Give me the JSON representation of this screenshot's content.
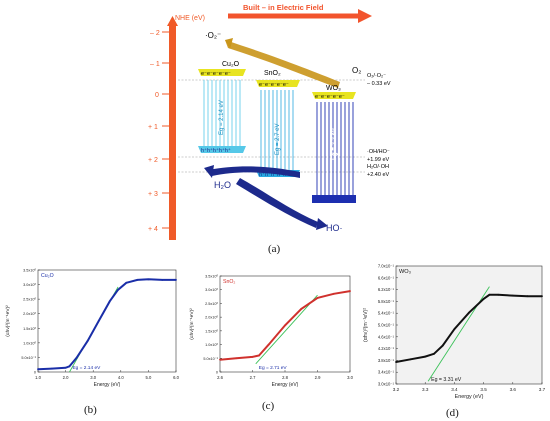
{
  "diagram": {
    "nhe_label": "NHE (eV)",
    "field_label": "Built – in Electric Field",
    "nhe_ticks": [
      "– 2",
      "– 1",
      "0",
      "+ 1",
      "+ 2",
      "+ 3",
      "+ 4"
    ],
    "superoxide": "·O₂⁻",
    "o2": "O₂",
    "cu2o": "Cu₂O",
    "sno2": "SnO₂",
    "wo3": "WO₃",
    "electrons": "e⁻e⁻e⁻e⁻e⁻",
    "holes": "h⁺h⁺h⁺h⁺h⁺",
    "cu2o_gap": "Eg = 2.14 eV",
    "sno2_gap": "Eg = 2.7 eV",
    "wo3_gap": "Eg = 3.3 eV",
    "o2_couple": "O₂/·O₂⁻",
    "o2_value": "– 0.33 eV",
    "oh_couple": "·OH/HO⁻",
    "oh_value": "+1.99 eV",
    "h2o_couple": "H₂O/·OH",
    "h2o_value": "+2.40 eV",
    "h2o": "H₂O",
    "ho_rad": "HO·",
    "colors": {
      "axis": "#f05a28",
      "arrow": "#f2542d",
      "cu2o": "#55c8e8",
      "sno2": "#29a9e0",
      "wo3": "#1d2fb0",
      "gold": "#c9951a",
      "navy": "#1d2a8c"
    }
  },
  "labels": {
    "a": "(a)",
    "b": "(b)",
    "c": "(c)",
    "d": "(d)"
  },
  "chart_data": [
    {
      "type": "line",
      "panel": "b",
      "legend": "Cu₂O",
      "xlabel": "Energy (eV)",
      "ylabel": "(αhν)²(m⁻¹eV)²",
      "xlim": [
        1.0,
        6.0
      ],
      "ylim": [
        0,
        3.6
      ],
      "x_ticks": [
        "1.0",
        "2.0",
        "3.0",
        "4.0",
        "5.0",
        "6.0"
      ],
      "y_ticks": [
        "0",
        "5.0x10⁻¹",
        "1.0x10⁰",
        "1.5x10⁰",
        "2.0x10⁰",
        "2.5x10⁰",
        "3.0x10⁰",
        "3.5x10⁰"
      ],
      "annotation": "Eg = 2.14 eV",
      "line_color": "#1a2ea8",
      "x": [
        1.0,
        1.5,
        2.0,
        2.14,
        2.4,
        2.8,
        3.2,
        3.6,
        3.9,
        4.2,
        4.6,
        5.0,
        5.5,
        6.0
      ],
      "y": [
        0.1,
        0.12,
        0.15,
        0.2,
        0.5,
        1.1,
        1.8,
        2.5,
        2.9,
        3.15,
        3.25,
        3.27,
        3.25,
        3.25
      ],
      "fit": {
        "x": [
          2.14,
          3.9
        ],
        "y": [
          0.0,
          3.0
        ]
      }
    },
    {
      "type": "line",
      "panel": "c",
      "legend": "SnO₂",
      "xlabel": "Energy (eV)",
      "ylabel": "(αhν)²(m⁻¹eV)²",
      "xlim": [
        2.6,
        3.0
      ],
      "ylim": [
        0,
        3.5
      ],
      "x_ticks": [
        "2.6",
        "2.7",
        "2.8",
        "2.9",
        "3.0"
      ],
      "y_ticks": [
        "0",
        "5.0x10⁻¹",
        "1.0x10⁰",
        "1.5x10⁰",
        "2.0x10⁰",
        "2.5x10⁰",
        "3.0x10⁰",
        "3.5x10⁰"
      ],
      "annotation": "Eg = 2.71 eV",
      "line_color": "#d0312d",
      "x": [
        2.6,
        2.65,
        2.7,
        2.72,
        2.75,
        2.8,
        2.85,
        2.9,
        2.95,
        3.0
      ],
      "y": [
        0.45,
        0.5,
        0.55,
        0.6,
        1.0,
        1.7,
        2.3,
        2.7,
        2.85,
        2.95
      ],
      "fit": {
        "x": [
          2.71,
          2.9
        ],
        "y": [
          0.3,
          2.8
        ]
      }
    },
    {
      "type": "line",
      "panel": "d",
      "legend": "WO₃",
      "xlabel": "Energy (eV)",
      "ylabel": "(αhν)²(m⁻¹eV)²",
      "xlim": [
        3.2,
        3.7
      ],
      "ylim": [
        0.29,
        0.72
      ],
      "x_ticks": [
        "3.2",
        "3.3",
        "3.4",
        "3.5",
        "3.6",
        "3.7"
      ],
      "y_ticks": [
        "3.0x10⁻¹",
        "3.4x10⁻¹",
        "3.8x10⁻¹",
        "4.2x10⁻¹",
        "4.6x10⁻¹",
        "5.0x10⁻¹",
        "5.4x10⁻¹",
        "5.8x10⁻¹",
        "6.2x10⁻¹",
        "6.6x10⁻¹",
        "7.0x10⁻¹"
      ],
      "annotation": "Eg = 3.31 eV",
      "line_color": "#111111",
      "x": [
        3.2,
        3.25,
        3.3,
        3.33,
        3.36,
        3.4,
        3.45,
        3.5,
        3.52,
        3.55,
        3.6,
        3.65,
        3.7
      ],
      "y": [
        0.37,
        0.38,
        0.39,
        0.4,
        0.43,
        0.49,
        0.55,
        0.6,
        0.615,
        0.615,
        0.612,
        0.61,
        0.61
      ],
      "fit": {
        "x": [
          3.31,
          3.52
        ],
        "y": [
          0.3,
          0.645
        ]
      }
    }
  ]
}
